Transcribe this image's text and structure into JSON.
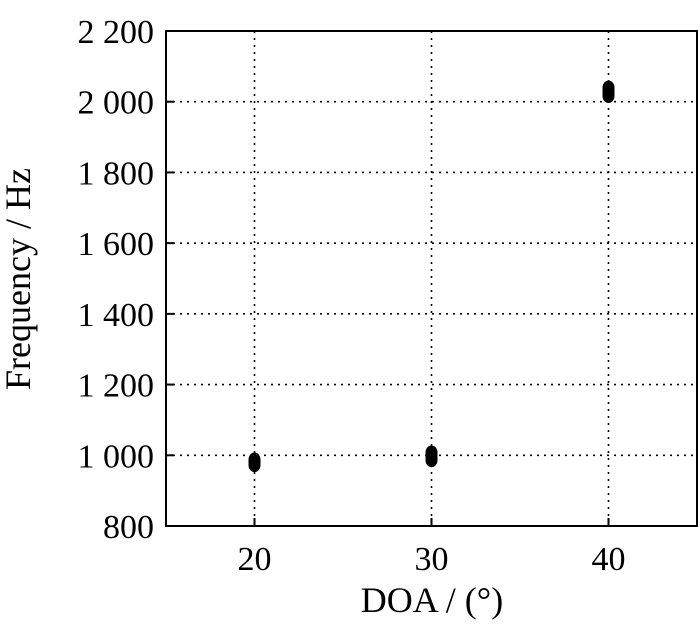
{
  "chart_data": {
    "type": "scatter",
    "title": "",
    "xlabel": "DOA / (°)",
    "ylabel": "Frequency / Hz",
    "xlim": [
      15,
      45
    ],
    "ylim": [
      800,
      2200
    ],
    "x_ticks": [
      20,
      30,
      40
    ],
    "x_tick_labels": [
      "20",
      "30",
      "40"
    ],
    "y_ticks": [
      800,
      1000,
      1200,
      1400,
      1600,
      1800,
      2000,
      2200
    ],
    "y_tick_labels": [
      "800",
      "1 000",
      "1 200",
      "1 400",
      "1 600",
      "1 800",
      "2 000",
      "2 200"
    ],
    "grid": true,
    "legend": "none",
    "series": [
      {
        "points": [
          {
            "x": 20,
            "y": 972
          },
          {
            "x": 20,
            "y": 978
          },
          {
            "x": 20,
            "y": 983
          },
          {
            "x": 20,
            "y": 988
          },
          {
            "x": 30,
            "y": 986
          },
          {
            "x": 30,
            "y": 992
          },
          {
            "x": 30,
            "y": 998
          },
          {
            "x": 30,
            "y": 1004
          },
          {
            "x": 30,
            "y": 1008
          },
          {
            "x": 40,
            "y": 2016
          },
          {
            "x": 40,
            "y": 2022
          },
          {
            "x": 40,
            "y": 2028
          },
          {
            "x": 40,
            "y": 2034
          },
          {
            "x": 40,
            "y": 2040
          }
        ]
      }
    ]
  }
}
